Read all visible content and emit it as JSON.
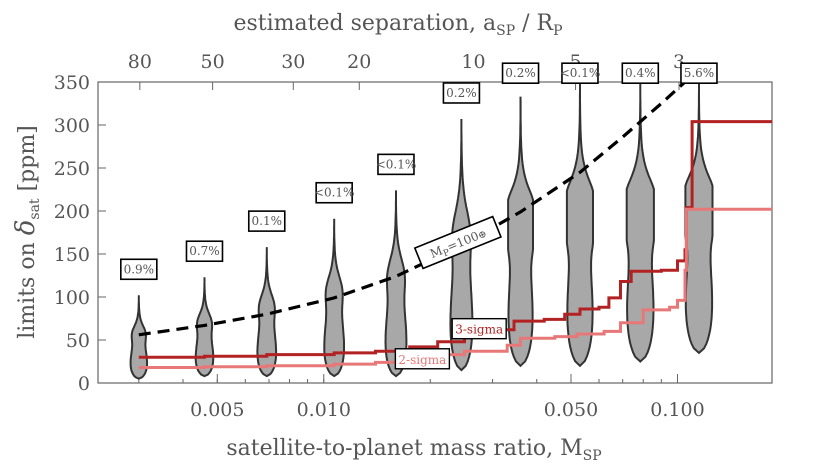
{
  "chart_data": {
    "type": "violin",
    "xlabel": "satellite-to-planet mass ratio, M",
    "xlabel_sub": "SP",
    "ylabel_prefix": "limits on ",
    "ylabel_symbol": "δ",
    "ylabel_sub": "sat",
    "ylabel_suffix": " [ppm]",
    "top_xlabel": "estimated separation, a",
    "top_xlabel_sub": "SP",
    "top_xlabel_mid": " / R",
    "top_xlabel_sub2": "P",
    "x_scale": "log",
    "xlim": [
      0.0023,
      0.185
    ],
    "ylim": [
      0,
      350
    ],
    "y_ticks": [
      0,
      50,
      100,
      150,
      200,
      250,
      300,
      350
    ],
    "x_ticks": [
      {
        "value": 0.005,
        "label": "0.005"
      },
      {
        "value": 0.01,
        "label": "0.010"
      },
      {
        "value": 0.05,
        "label": "0.050"
      },
      {
        "value": 0.1,
        "label": "0.100"
      }
    ],
    "top_ticks": [
      {
        "value": 0.00302,
        "label": "80"
      },
      {
        "value": 0.00485,
        "label": "50"
      },
      {
        "value": 0.0082,
        "label": "30"
      },
      {
        "value": 0.0126,
        "label": "20"
      },
      {
        "value": 0.0265,
        "label": "10"
      },
      {
        "value": 0.0515,
        "label": "5"
      },
      {
        "value": 0.101,
        "label": "3"
      }
    ],
    "violins": [
      {
        "x": 0.003,
        "pct": "0.9%",
        "min": 5,
        "max": 102,
        "half_width": 0.075
      },
      {
        "x": 0.0046,
        "pct": "0.7%",
        "min": 8,
        "max": 123,
        "half_width": 0.08
      },
      {
        "x": 0.0069,
        "pct": "0.1%",
        "min": 8,
        "max": 158,
        "half_width": 0.085
      },
      {
        "x": 0.0107,
        "pct": "<0.1%",
        "min": 8,
        "max": 191,
        "half_width": 0.09
      },
      {
        "x": 0.016,
        "pct": "<0.1%",
        "min": 8,
        "max": 224,
        "half_width": 0.095
      },
      {
        "x": 0.0245,
        "pct": "0.2%",
        "min": 15,
        "max": 307,
        "half_width": 0.1
      },
      {
        "x": 0.036,
        "pct": "0.2%",
        "min": 20,
        "max": 333,
        "half_width": 0.11
      },
      {
        "x": 0.053,
        "pct": "<0.1%",
        "min": 20,
        "max": 350,
        "half_width": 0.115
      },
      {
        "x": 0.0785,
        "pct": "0.4%",
        "min": 25,
        "max": 350,
        "half_width": 0.12
      },
      {
        "x": 0.115,
        "pct": "5.6%",
        "min": 35,
        "max": 350,
        "half_width": 0.12
      }
    ],
    "series": [
      {
        "name": "3-sigma",
        "color": "#b22222",
        "points": [
          [
            0.003,
            30
          ],
          [
            0.0046,
            31
          ],
          [
            0.0069,
            33
          ],
          [
            0.0107,
            35
          ],
          [
            0.014,
            37
          ],
          [
            0.0175,
            42
          ],
          [
            0.021,
            48
          ],
          [
            0.025,
            56
          ],
          [
            0.031,
            62
          ],
          [
            0.0345,
            72
          ],
          [
            0.042,
            74
          ],
          [
            0.048,
            80
          ],
          [
            0.053,
            86
          ],
          [
            0.06,
            88
          ],
          [
            0.064,
            99
          ],
          [
            0.069,
            118
          ],
          [
            0.074,
            130
          ],
          [
            0.09,
            131
          ],
          [
            0.1,
            142
          ],
          [
            0.105,
            155
          ],
          [
            0.106,
            204
          ],
          [
            0.11,
            304
          ],
          [
            0.185,
            304
          ]
        ]
      },
      {
        "name": "2-sigma",
        "color": "#e87878",
        "points": [
          [
            0.003,
            18
          ],
          [
            0.0046,
            19
          ],
          [
            0.0069,
            20
          ],
          [
            0.0107,
            22
          ],
          [
            0.014,
            24
          ],
          [
            0.0175,
            28
          ],
          [
            0.021,
            33
          ],
          [
            0.025,
            37
          ],
          [
            0.033,
            44
          ],
          [
            0.036,
            52
          ],
          [
            0.045,
            54
          ],
          [
            0.052,
            57
          ],
          [
            0.062,
            60
          ],
          [
            0.069,
            70
          ],
          [
            0.08,
            85
          ],
          [
            0.095,
            88
          ],
          [
            0.1,
            96
          ],
          [
            0.105,
            131
          ],
          [
            0.106,
            202
          ],
          [
            0.185,
            202
          ]
        ]
      }
    ],
    "mass_curve": {
      "label": "M",
      "label_sub": "P",
      "label_suffix": "=100",
      "label_symbol": "⊕",
      "points": [
        [
          0.003,
          56
        ],
        [
          0.0046,
          67
        ],
        [
          0.0069,
          80
        ],
        [
          0.0107,
          99
        ],
        [
          0.016,
          124
        ],
        [
          0.0245,
          160
        ],
        [
          0.036,
          199
        ],
        [
          0.053,
          245
        ],
        [
          0.07,
          286
        ],
        [
          0.09,
          325
        ],
        [
          0.105,
          350
        ]
      ]
    },
    "annotations": {
      "three_sigma": "3-sigma",
      "two_sigma": "2-sigma"
    },
    "colors": {
      "violin_fill": "#a8a8a8",
      "violin_stroke": "#333333",
      "axis": "#666666",
      "curve": "#000000"
    }
  }
}
